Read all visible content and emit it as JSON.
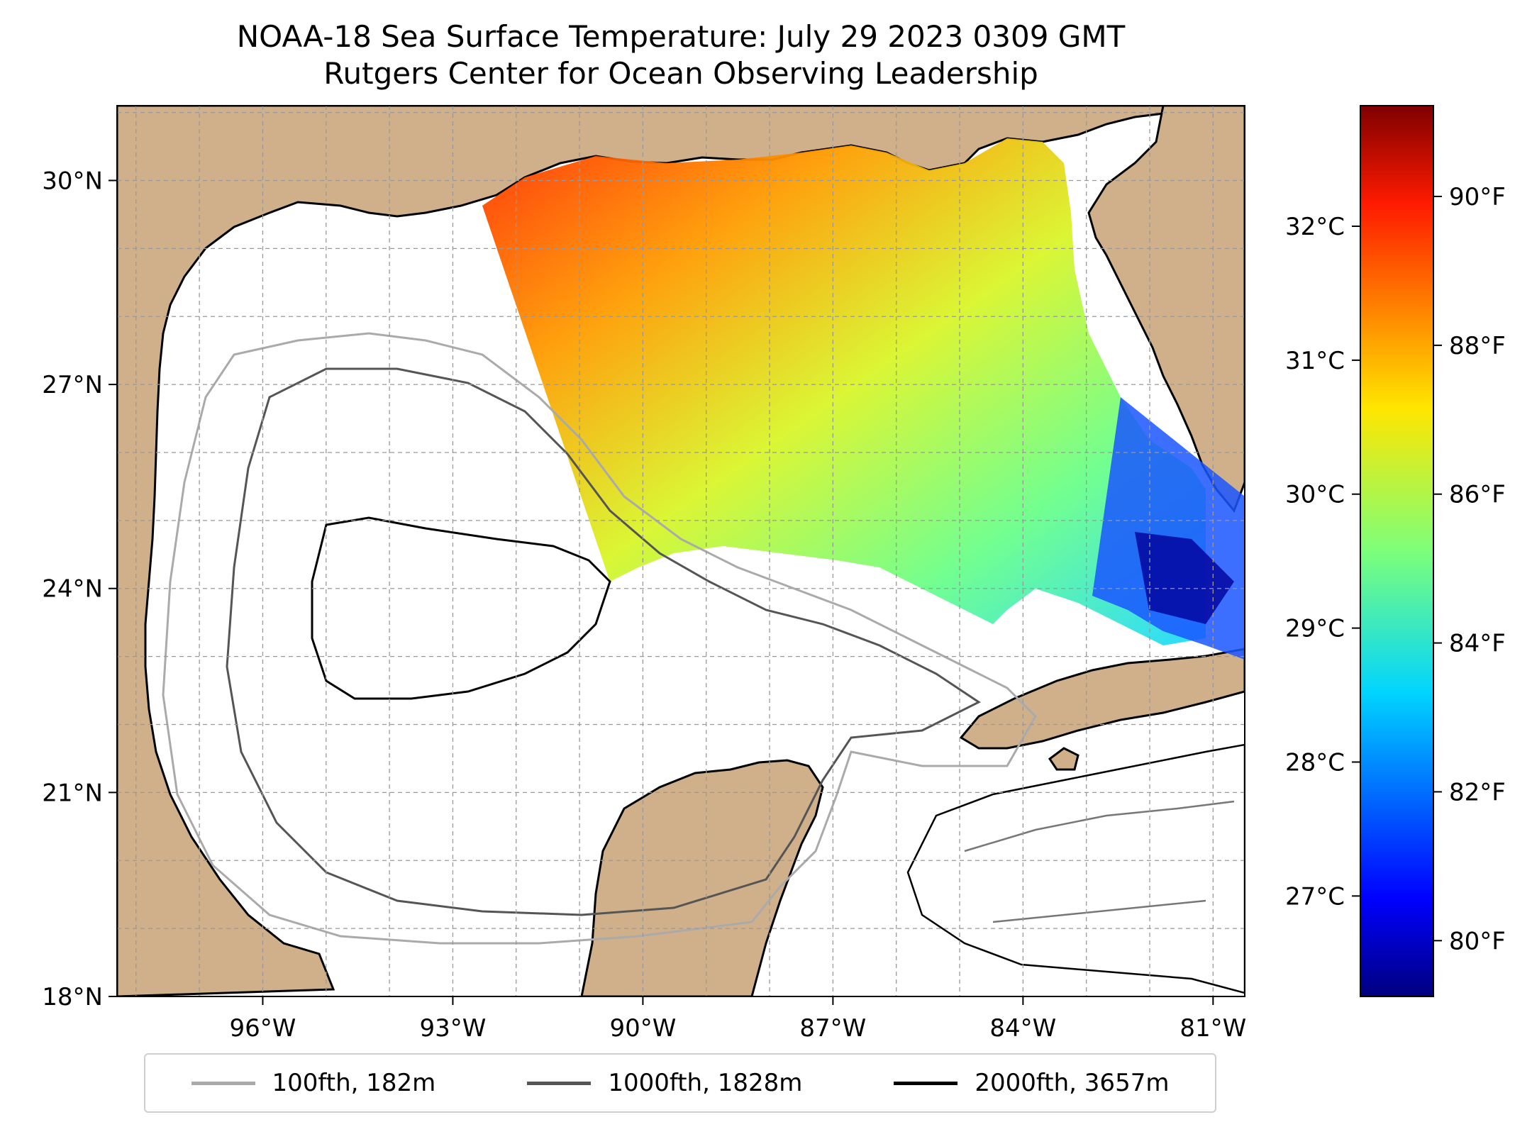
{
  "title": {
    "line1": "NOAA-18 Sea Surface Temperature: July 29 2023 0309 GMT",
    "line2": "Rutgers Center for Ocean Observing Leadership"
  },
  "map": {
    "lon_range": [
      -98.3,
      -80.5
    ],
    "lat_range": [
      18.0,
      31.1
    ],
    "lat_ticks": [
      {
        "value": 30,
        "label": "30°N"
      },
      {
        "value": 27,
        "label": "27°N"
      },
      {
        "value": 24,
        "label": "24°N"
      },
      {
        "value": 21,
        "label": "21°N"
      },
      {
        "value": 18,
        "label": "18°N"
      }
    ],
    "lon_ticks": [
      {
        "value": -96,
        "label": "96°W"
      },
      {
        "value": -93,
        "label": "93°W"
      },
      {
        "value": -90,
        "label": "90°W"
      },
      {
        "value": -87,
        "label": "87°W"
      },
      {
        "value": -84,
        "label": "84°W"
      },
      {
        "value": -81,
        "label": "81°W"
      }
    ],
    "land_color": "#cfb08a",
    "grid": true
  },
  "colorbar": {
    "colormap": "jet",
    "celsius_ticks": [
      {
        "value": 32,
        "label": "32°C"
      },
      {
        "value": 31,
        "label": "31°C"
      },
      {
        "value": 30,
        "label": "30°C"
      },
      {
        "value": 29,
        "label": "29°C"
      },
      {
        "value": 28,
        "label": "28°C"
      },
      {
        "value": 27,
        "label": "27°C"
      }
    ],
    "fahrenheit_ticks": [
      {
        "value": 90,
        "label": "90°F"
      },
      {
        "value": 88,
        "label": "88°F"
      },
      {
        "value": 86,
        "label": "86°F"
      },
      {
        "value": 84,
        "label": "84°F"
      },
      {
        "value": 82,
        "label": "82°F"
      },
      {
        "value": 80,
        "label": "80°F"
      }
    ]
  },
  "legend": [
    {
      "label": "100fth, 182m",
      "color": "#aaaaaa"
    },
    {
      "label": "1000fth, 1828m",
      "color": "#555555"
    },
    {
      "label": "2000fth, 3657m",
      "color": "#000000"
    }
  ]
}
